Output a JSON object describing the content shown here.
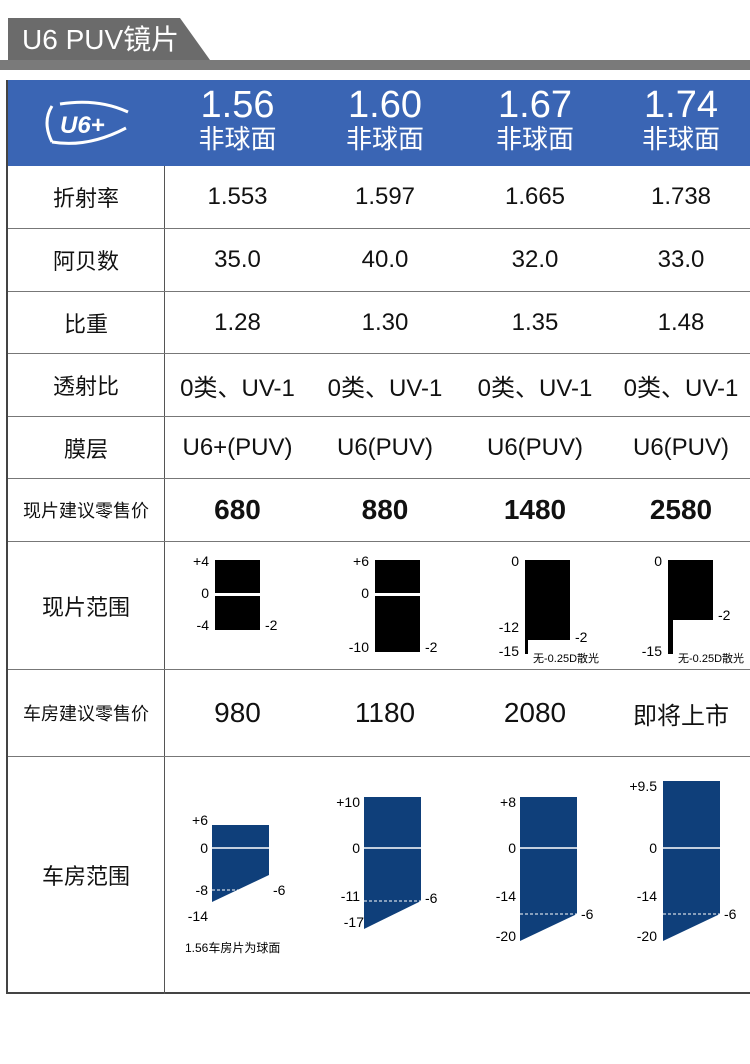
{
  "header": {
    "title": "U6 PUV镜片"
  },
  "logo_text": "U6+",
  "columns": [
    {
      "index": "1.56",
      "type": "非球面"
    },
    {
      "index": "1.60",
      "type": "非球面"
    },
    {
      "index": "1.67",
      "type": "非球面"
    },
    {
      "index": "1.74",
      "type": "非球面"
    }
  ],
  "rows": [
    {
      "label": "折射率",
      "values": [
        "1.553",
        "1.597",
        "1.665",
        "1.738"
      ]
    },
    {
      "label": "阿贝数",
      "values": [
        "35.0",
        "40.0",
        "32.0",
        "33.0"
      ]
    },
    {
      "label": "比重",
      "values": [
        "1.28",
        "1.30",
        "1.35",
        "1.48"
      ]
    },
    {
      "label": "透射比",
      "values": [
        "0类、UV-1",
        "0类、UV-1",
        "0类、UV-1",
        "0类、UV-1"
      ]
    },
    {
      "label": "膜层",
      "values": [
        "U6+(PUV)",
        "U6(PUV)",
        "U6(PUV)",
        "U6(PUV)"
      ]
    },
    {
      "label": "现片建议零售价",
      "values": [
        "680",
        "880",
        "1480",
        "2580"
      ]
    }
  ],
  "stock_range": {
    "label": "现片范围",
    "cols": [
      {
        "top": "+4",
        "zero": "0",
        "bottom": "-4",
        "cyl": "-2",
        "note": ""
      },
      {
        "top": "+6",
        "zero": "0",
        "bottom": "-10",
        "cyl": "-2",
        "note": ""
      },
      {
        "top": "0",
        "mid": "-12",
        "bottom": "-15",
        "cyl": "-2",
        "note": "无-0.25D散光"
      },
      {
        "top": "0",
        "bottom": "-15",
        "cyl": "-2",
        "note": "无-0.25D散光"
      }
    ]
  },
  "lab_price": {
    "label": "车房建议零售价",
    "values": [
      "980",
      "1180",
      "2080",
      "即将上市"
    ]
  },
  "lab_range": {
    "label": "车房范围",
    "color": "#0f3f7a",
    "cols": [
      {
        "top": "+6",
        "zero": "0",
        "mid": "-8",
        "bottom": "-14",
        "cyl": "-6",
        "note": "1.56车房片为球面"
      },
      {
        "top": "+10",
        "zero": "0",
        "mid": "-11",
        "bottom": "-17",
        "cyl": "-6",
        "note": ""
      },
      {
        "top": "+8",
        "zero": "0",
        "mid": "-14",
        "bottom": "-20",
        "cyl": "-6",
        "note": ""
      },
      {
        "top": "+9.5",
        "zero": "0",
        "mid": "-14",
        "bottom": "-20",
        "cyl": "-6",
        "note": ""
      }
    ]
  },
  "colors": {
    "header_blue": "#3a65b4",
    "tab_gray": "#6b6b6b"
  }
}
